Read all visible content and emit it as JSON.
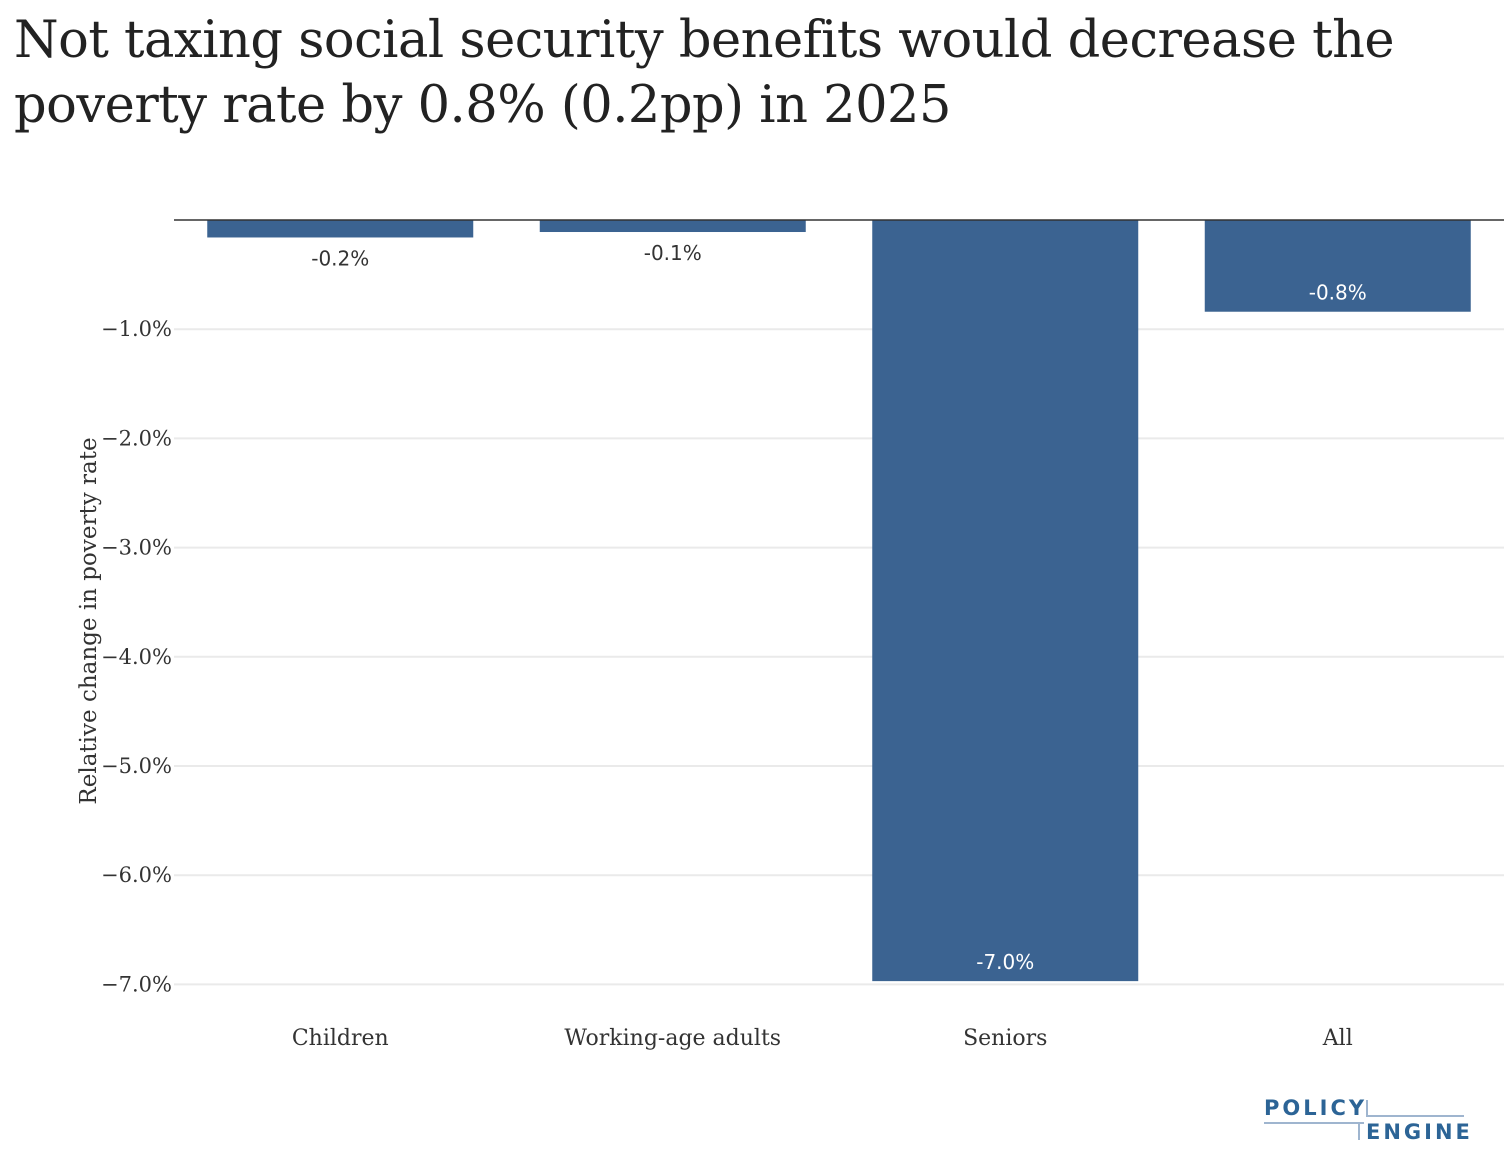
{
  "title_lines": [
    "Not taxing social security benefits would decrease the",
    "poverty rate by 0.8% (0.2pp) in 2025"
  ],
  "colors": {
    "bar": "#3B6391",
    "grid": "#EAEAEA",
    "zero_line": "#333333",
    "label_outside": "#333333",
    "label_inside": "#FFFFFF"
  },
  "chart_data": {
    "type": "bar",
    "title": "Not taxing social security benefits would decrease the poverty rate by 0.8% (0.2pp) in 2025",
    "xlabel": "",
    "ylabel": "Relative change in poverty rate",
    "categories": [
      "Children",
      "Working-age adults",
      "Seniors",
      "All"
    ],
    "values": [
      -0.16,
      -0.11,
      -6.97,
      -0.84
    ],
    "data_labels": [
      "-0.2%",
      "-0.1%",
      "-7.0%",
      "-0.8%"
    ],
    "label_position": [
      "outside",
      "outside",
      "inside",
      "inside"
    ],
    "yticks": [
      -1,
      -2,
      -3,
      -4,
      -5,
      -6,
      -7
    ],
    "ytick_labels": [
      "−1.0%",
      "−2.0%",
      "−3.0%",
      "−4.0%",
      "−5.0%",
      "−6.0%",
      "−7.0%"
    ],
    "ylim": [
      -7.2,
      0
    ],
    "grid": true,
    "legend": "none"
  },
  "logo": {
    "line1": "POLICY",
    "line2": "ENGINE"
  }
}
